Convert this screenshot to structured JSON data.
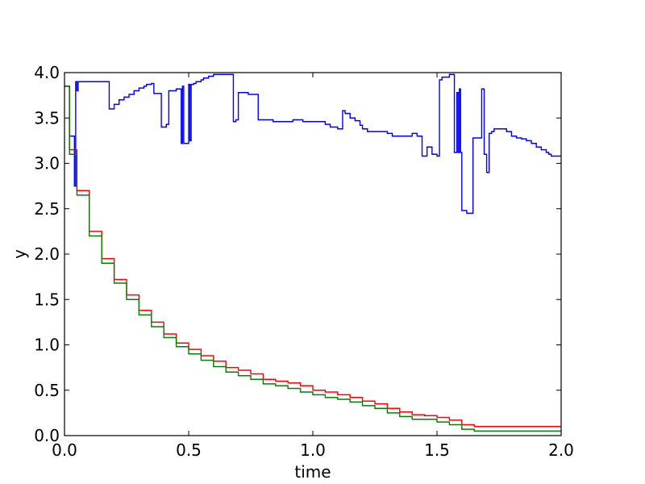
{
  "chart_data": {
    "type": "line",
    "title": "",
    "xlabel": "time",
    "ylabel": "y",
    "xlim": [
      0.0,
      2.0
    ],
    "ylim": [
      0.0,
      4.0
    ],
    "xticks": [
      0.0,
      0.5,
      1.0,
      1.5,
      2.0
    ],
    "xtick_labels": [
      "0.0",
      "0.5",
      "1.0",
      "1.5",
      "2.0"
    ],
    "yticks": [
      0.0,
      0.5,
      1.0,
      1.5,
      2.0,
      2.5,
      3.0,
      3.5,
      4.0
    ],
    "ytick_labels": [
      "0.0",
      "0.5",
      "1.0",
      "1.5",
      "2.0",
      "2.5",
      "3.0",
      "3.5",
      "4.0"
    ],
    "grid": false,
    "legend": false,
    "series": [
      {
        "color": "#0000ff",
        "x": [
          0.0,
          0.02,
          0.04,
          0.045,
          0.05,
          0.055,
          0.06,
          0.1,
          0.15,
          0.18,
          0.2,
          0.22,
          0.24,
          0.26,
          0.28,
          0.3,
          0.32,
          0.33,
          0.35,
          0.36,
          0.37,
          0.38,
          0.39,
          0.4,
          0.41,
          0.42,
          0.43,
          0.45,
          0.47,
          0.475,
          0.48,
          0.49,
          0.5,
          0.505,
          0.51,
          0.52,
          0.53,
          0.54,
          0.55,
          0.56,
          0.58,
          0.6,
          0.62,
          0.63,
          0.65,
          0.68,
          0.69,
          0.7,
          0.72,
          0.74,
          0.76,
          0.78,
          0.8,
          0.84,
          0.86,
          0.9,
          0.92,
          0.94,
          0.96,
          1.0,
          1.03,
          1.05,
          1.07,
          1.1,
          1.11,
          1.12,
          1.13,
          1.15,
          1.17,
          1.19,
          1.2,
          1.22,
          1.25,
          1.3,
          1.32,
          1.33,
          1.35,
          1.37,
          1.4,
          1.42,
          1.43,
          1.44,
          1.46,
          1.48,
          1.5,
          1.51,
          1.52,
          1.55,
          1.57,
          1.58,
          1.585,
          1.59,
          1.595,
          1.6,
          1.61,
          1.62,
          1.635,
          1.645,
          1.65,
          1.68,
          1.69,
          1.7,
          1.71,
          1.72,
          1.73,
          1.75,
          1.78,
          1.8,
          1.82,
          1.84,
          1.86,
          1.88,
          1.9,
          1.92,
          1.94,
          1.95,
          1.96,
          1.98,
          2.0
        ],
        "y": [
          3.85,
          3.3,
          2.75,
          3.9,
          3.8,
          3.9,
          3.9,
          3.9,
          3.9,
          3.6,
          3.65,
          3.7,
          3.73,
          3.76,
          3.8,
          3.83,
          3.85,
          3.87,
          3.88,
          3.77,
          3.77,
          3.77,
          3.4,
          3.4,
          3.43,
          3.8,
          3.8,
          3.82,
          3.22,
          3.85,
          3.22,
          3.22,
          3.87,
          3.25,
          3.87,
          3.88,
          3.9,
          3.9,
          3.92,
          3.94,
          3.96,
          3.98,
          3.98,
          3.98,
          3.98,
          3.46,
          3.48,
          3.78,
          3.78,
          3.76,
          3.76,
          3.48,
          3.48,
          3.46,
          3.46,
          3.46,
          3.48,
          3.48,
          3.46,
          3.46,
          3.46,
          3.43,
          3.4,
          3.38,
          3.38,
          3.58,
          3.55,
          3.5,
          3.47,
          3.42,
          3.38,
          3.35,
          3.35,
          3.33,
          3.3,
          3.3,
          3.3,
          3.3,
          3.33,
          3.3,
          3.3,
          3.08,
          3.18,
          3.1,
          3.08,
          3.92,
          3.95,
          3.98,
          3.12,
          3.78,
          3.12,
          3.82,
          3.12,
          2.48,
          2.48,
          2.45,
          2.45,
          3.28,
          3.28,
          3.82,
          3.1,
          2.9,
          3.33,
          3.35,
          3.38,
          3.38,
          3.35,
          3.3,
          3.28,
          3.27,
          3.25,
          3.22,
          3.18,
          3.15,
          3.12,
          3.1,
          3.08,
          3.08,
          3.08
        ]
      },
      {
        "color": "#ff0000",
        "x": [
          0.0,
          0.02,
          0.05,
          0.1,
          0.15,
          0.2,
          0.25,
          0.3,
          0.35,
          0.4,
          0.45,
          0.5,
          0.55,
          0.6,
          0.65,
          0.7,
          0.75,
          0.8,
          0.85,
          0.9,
          0.95,
          1.0,
          1.05,
          1.1,
          1.15,
          1.2,
          1.25,
          1.3,
          1.35,
          1.4,
          1.45,
          1.5,
          1.55,
          1.6,
          1.65,
          1.7,
          1.8,
          1.9,
          2.0
        ],
        "y": [
          3.85,
          3.15,
          2.7,
          2.25,
          1.95,
          1.72,
          1.55,
          1.38,
          1.25,
          1.12,
          1.02,
          0.95,
          0.88,
          0.82,
          0.75,
          0.72,
          0.68,
          0.62,
          0.6,
          0.58,
          0.55,
          0.5,
          0.48,
          0.45,
          0.42,
          0.38,
          0.35,
          0.3,
          0.26,
          0.23,
          0.22,
          0.2,
          0.17,
          0.12,
          0.1,
          0.1,
          0.1,
          0.1,
          0.1
        ]
      },
      {
        "color": "#008000",
        "x": [
          0.0,
          0.02,
          0.05,
          0.1,
          0.15,
          0.2,
          0.25,
          0.3,
          0.35,
          0.4,
          0.45,
          0.5,
          0.55,
          0.6,
          0.65,
          0.7,
          0.75,
          0.8,
          0.85,
          0.9,
          0.95,
          1.0,
          1.05,
          1.1,
          1.15,
          1.2,
          1.25,
          1.3,
          1.35,
          1.4,
          1.45,
          1.5,
          1.55,
          1.6,
          1.65,
          1.7,
          1.8,
          1.9,
          2.0
        ],
        "y": [
          3.85,
          3.1,
          2.65,
          2.2,
          1.9,
          1.68,
          1.5,
          1.33,
          1.2,
          1.08,
          0.98,
          0.9,
          0.83,
          0.76,
          0.7,
          0.66,
          0.62,
          0.57,
          0.55,
          0.52,
          0.48,
          0.45,
          0.42,
          0.4,
          0.37,
          0.33,
          0.3,
          0.25,
          0.21,
          0.18,
          0.18,
          0.15,
          0.12,
          0.07,
          0.05,
          0.05,
          0.05,
          0.05,
          0.05
        ]
      }
    ]
  }
}
